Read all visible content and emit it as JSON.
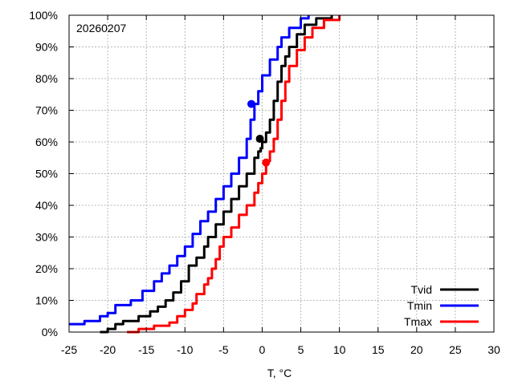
{
  "chart_data": {
    "type": "line",
    "annotation": "20260207",
    "xlabel": "T, °C",
    "ylabel": "",
    "xlim": [
      -25,
      30
    ],
    "ylim": [
      0,
      100
    ],
    "x_ticks": [
      -25,
      -20,
      -15,
      -10,
      -5,
      0,
      5,
      10,
      15,
      20,
      25,
      30
    ],
    "y_ticks": [
      0,
      10,
      20,
      30,
      40,
      50,
      60,
      70,
      80,
      90,
      100
    ],
    "y_unit": "%",
    "grid": true,
    "legend_position": "bottom-right",
    "series": [
      {
        "name": "Tvid",
        "color": "#000000",
        "points": [
          [
            -21,
            0
          ],
          [
            -20,
            1
          ],
          [
            -19,
            2.5
          ],
          [
            -18,
            3.5
          ],
          [
            -16,
            5
          ],
          [
            -14.5,
            6.5
          ],
          [
            -13.5,
            8
          ],
          [
            -12.5,
            10
          ],
          [
            -11.5,
            12.5
          ],
          [
            -10.5,
            16
          ],
          [
            -9.5,
            21
          ],
          [
            -8.5,
            23.5
          ],
          [
            -7.5,
            27
          ],
          [
            -7,
            30
          ],
          [
            -6,
            34
          ],
          [
            -5,
            38
          ],
          [
            -4,
            42
          ],
          [
            -3,
            46
          ],
          [
            -2,
            50
          ],
          [
            -1,
            55
          ],
          [
            -0.5,
            57
          ],
          [
            -0.2,
            58
          ],
          [
            0,
            60
          ],
          [
            0.5,
            63
          ],
          [
            1,
            67
          ],
          [
            1.5,
            73
          ],
          [
            2,
            79
          ],
          [
            2.5,
            84
          ],
          [
            3,
            87
          ],
          [
            3.5,
            90
          ],
          [
            4.5,
            94
          ],
          [
            5.5,
            97
          ],
          [
            7,
            99
          ],
          [
            9,
            100
          ]
        ],
        "marker": [
          -0.3,
          61
        ]
      },
      {
        "name": "Tmin",
        "color": "#0000ff",
        "points": [
          [
            -25,
            2.5
          ],
          [
            -23,
            3.5
          ],
          [
            -21,
            5
          ],
          [
            -20,
            6
          ],
          [
            -19,
            8.5
          ],
          [
            -17,
            10
          ],
          [
            -15.5,
            13
          ],
          [
            -14,
            16
          ],
          [
            -13,
            18.5
          ],
          [
            -12,
            21
          ],
          [
            -11,
            24
          ],
          [
            -10,
            27
          ],
          [
            -9,
            31
          ],
          [
            -8,
            35
          ],
          [
            -7,
            38
          ],
          [
            -6,
            42
          ],
          [
            -5,
            46
          ],
          [
            -4,
            50
          ],
          [
            -3,
            55
          ],
          [
            -2,
            61
          ],
          [
            -1.5,
            67
          ],
          [
            -1,
            72
          ],
          [
            -0.5,
            76
          ],
          [
            0,
            81
          ],
          [
            1,
            86
          ],
          [
            2,
            90
          ],
          [
            2.5,
            93
          ],
          [
            3.5,
            96
          ],
          [
            5,
            99
          ],
          [
            6,
            100
          ]
        ],
        "marker": [
          -1.4,
          72
        ]
      },
      {
        "name": "Tmax",
        "color": "#ff0000",
        "points": [
          [
            -17.5,
            0
          ],
          [
            -16,
            1
          ],
          [
            -14,
            2
          ],
          [
            -12,
            3
          ],
          [
            -11,
            5
          ],
          [
            -10,
            7
          ],
          [
            -9,
            9
          ],
          [
            -8.5,
            12
          ],
          [
            -7.5,
            15
          ],
          [
            -7,
            17
          ],
          [
            -6.5,
            20
          ],
          [
            -6,
            23
          ],
          [
            -5.5,
            27
          ],
          [
            -5,
            30
          ],
          [
            -4,
            33
          ],
          [
            -3,
            37
          ],
          [
            -2,
            40
          ],
          [
            -1,
            44
          ],
          [
            -0.5,
            47
          ],
          [
            0,
            50
          ],
          [
            0.5,
            54
          ],
          [
            1,
            57
          ],
          [
            1.5,
            61
          ],
          [
            2,
            67
          ],
          [
            2.5,
            73
          ],
          [
            3,
            79
          ],
          [
            3.5,
            84
          ],
          [
            4.5,
            89
          ],
          [
            5.5,
            93
          ],
          [
            6.5,
            96
          ],
          [
            8,
            98.5
          ],
          [
            10,
            100
          ]
        ],
        "marker": [
          0.5,
          53.5
        ]
      }
    ]
  }
}
